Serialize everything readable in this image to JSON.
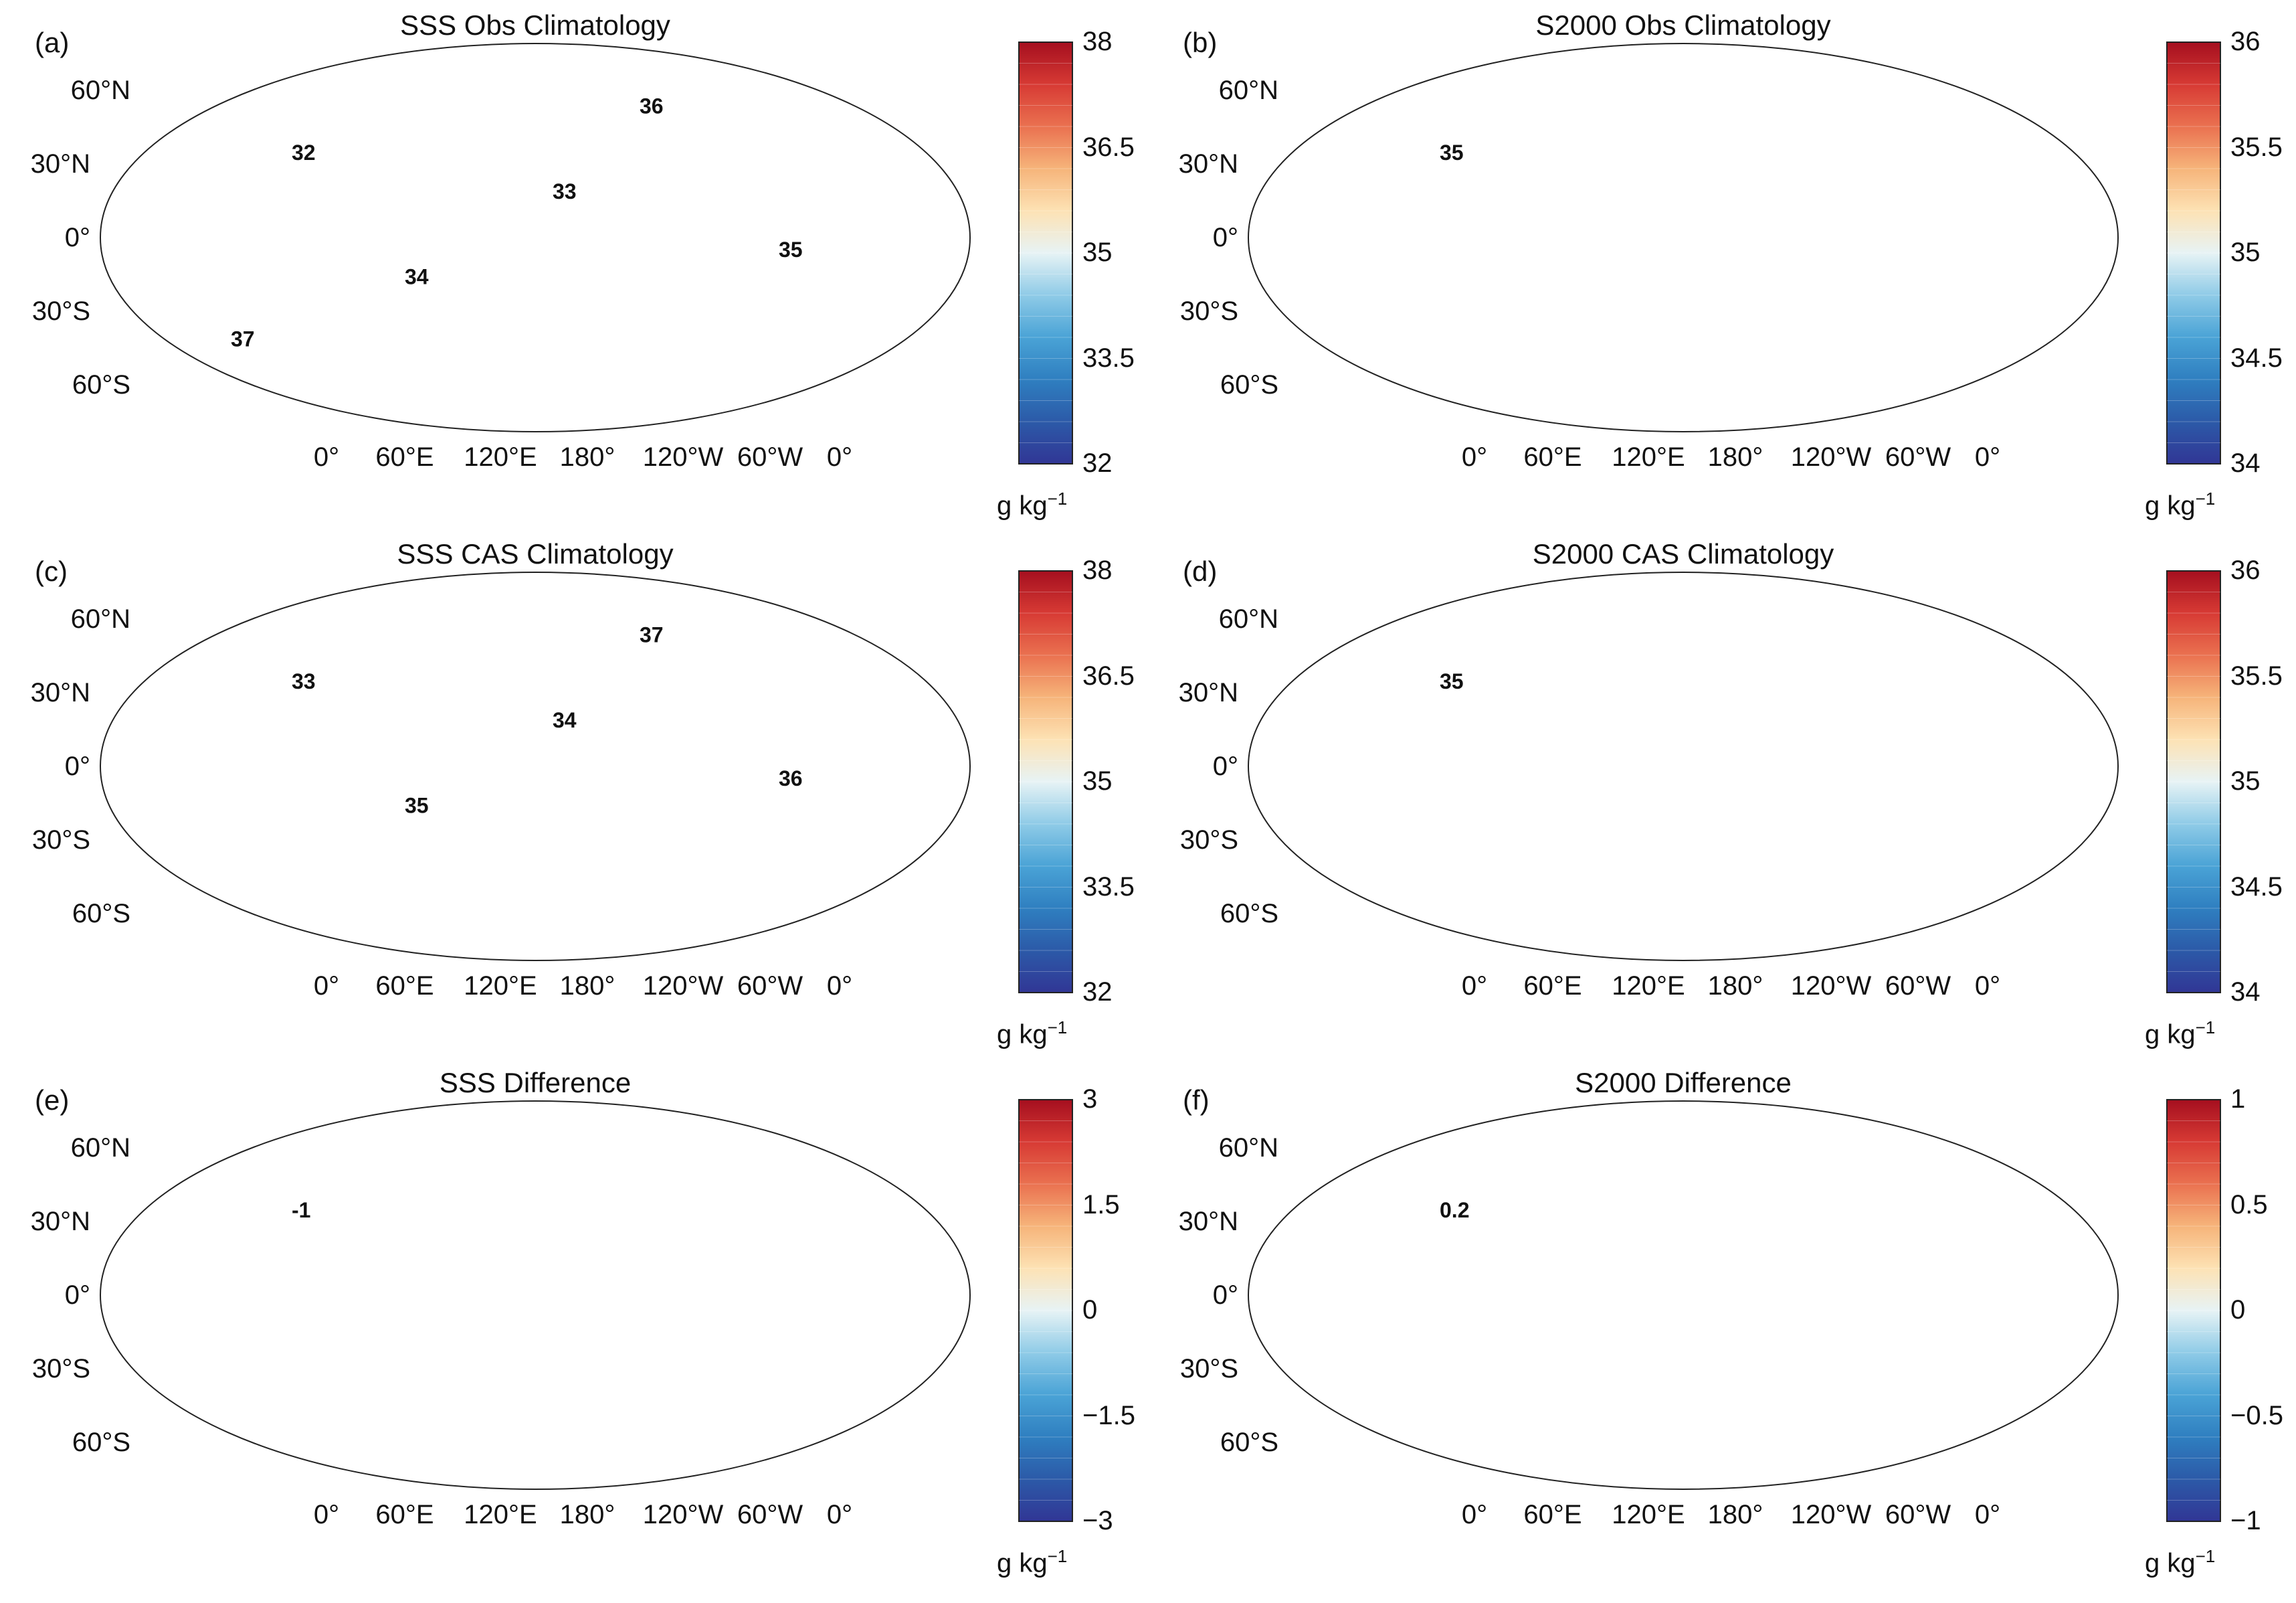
{
  "figure": {
    "land_color": "#5a5a5a",
    "panels": [
      {
        "id": "a",
        "label": "(a)",
        "title": "SSS Obs Climatology",
        "colorbar": {
          "min": 32,
          "max": 38,
          "ticks": [
            "38",
            "36.5",
            "35",
            "33.5",
            "32"
          ],
          "unit": "g kg",
          "unit_exp": "−1"
        },
        "lat_labels": [
          "60°N",
          "30°N",
          "0°",
          "30°S",
          "60°S"
        ],
        "lon_labels": [
          "0°",
          "60°E",
          "120°E",
          "180°",
          "120°W",
          "60°W",
          "0°"
        ],
        "contour_labels": [
          "32",
          "33",
          "34",
          "35",
          "36",
          "37"
        ]
      },
      {
        "id": "b",
        "label": "(b)",
        "title": "S2000 Obs Climatology",
        "colorbar": {
          "min": 34,
          "max": 36,
          "ticks": [
            "36",
            "35.5",
            "35",
            "34.5",
            "34"
          ],
          "unit": "g kg",
          "unit_exp": "−1"
        },
        "lat_labels": [
          "60°N",
          "30°N",
          "0°",
          "30°S",
          "60°S"
        ],
        "lon_labels": [
          "0°",
          "60°E",
          "120°E",
          "180°",
          "120°W",
          "60°W",
          "0°"
        ],
        "contour_labels": [
          "35"
        ]
      },
      {
        "id": "c",
        "label": "(c)",
        "title": "SSS CAS Climatology",
        "colorbar": {
          "min": 32,
          "max": 38,
          "ticks": [
            "38",
            "36.5",
            "35",
            "33.5",
            "32"
          ],
          "unit": "g kg",
          "unit_exp": "−1"
        },
        "lat_labels": [
          "60°N",
          "30°N",
          "0°",
          "30°S",
          "60°S"
        ],
        "lon_labels": [
          "0°",
          "60°E",
          "120°E",
          "180°",
          "120°W",
          "60°W",
          "0°"
        ],
        "contour_labels": [
          "33",
          "34",
          "35",
          "36",
          "37"
        ]
      },
      {
        "id": "d",
        "label": "(d)",
        "title": "S2000 CAS Climatology",
        "colorbar": {
          "min": 34,
          "max": 36,
          "ticks": [
            "36",
            "35.5",
            "35",
            "34.5",
            "34"
          ],
          "unit": "g kg",
          "unit_exp": "−1"
        },
        "lat_labels": [
          "60°N",
          "30°N",
          "0°",
          "30°S",
          "60°S"
        ],
        "lon_labels": [
          "0°",
          "60°E",
          "120°E",
          "180°",
          "120°W",
          "60°W",
          "0°"
        ],
        "contour_labels": [
          "35"
        ]
      },
      {
        "id": "e",
        "label": "(e)",
        "title": "SSS Difference",
        "colorbar": {
          "min": -3,
          "max": 3,
          "ticks": [
            "3",
            "1.5",
            "0",
            "−1.5",
            "−3"
          ],
          "unit": "g kg",
          "unit_exp": "−1"
        },
        "lat_labels": [
          "60°N",
          "30°N",
          "0°",
          "30°S",
          "60°S"
        ],
        "lon_labels": [
          "0°",
          "60°E",
          "120°E",
          "180°",
          "120°W",
          "60°W",
          "0°"
        ],
        "contour_labels": [
          "-1"
        ]
      },
      {
        "id": "f",
        "label": "(f)",
        "title": "S2000 Difference",
        "colorbar": {
          "min": -1,
          "max": 1,
          "ticks": [
            "1",
            "0.5",
            "0",
            "−0.5",
            "−1"
          ],
          "unit": "g kg",
          "unit_exp": "−1"
        },
        "lat_labels": [
          "60°N",
          "30°N",
          "0°",
          "30°S",
          "60°S"
        ],
        "lon_labels": [
          "0°",
          "60°E",
          "120°E",
          "180°",
          "120°W",
          "60°W",
          "0°"
        ],
        "contour_labels": [
          "0.2"
        ]
      }
    ]
  }
}
